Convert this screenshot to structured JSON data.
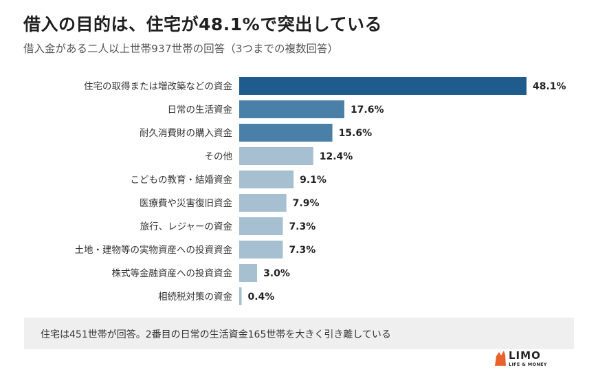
{
  "title": "借入の目的は、住宅が48.1%で突出している",
  "subtitle": "借入金がある二人以上世帯937世帯の回答（3つまでの複数回答）",
  "chart_data": {
    "type": "bar",
    "orientation": "horizontal",
    "categories": [
      "住宅の取得または増改築などの資金",
      "日常の生活資金",
      "耐久消費財の購入資金",
      "その他",
      "こどもの教育・結婚資金",
      "医療費や災害復旧資金",
      "旅行、レジャーの資金",
      "土地・建物等の実物資産への投資資金",
      "株式等金融資産への投資資金",
      "相続税対策の資金"
    ],
    "values": [
      48.1,
      17.6,
      15.6,
      12.4,
      9.1,
      7.9,
      7.3,
      7.3,
      3.0,
      0.4
    ],
    "value_labels": [
      "48.1%",
      "17.6%",
      "15.6%",
      "12.4%",
      "9.1%",
      "7.9%",
      "7.3%",
      "7.3%",
      "3.0%",
      "0.4%"
    ],
    "unit": "%",
    "colors": [
      "#1f5b8c",
      "#4a7fa8",
      "#4a7fa8",
      "#a6bfd1",
      "#a6bfd1",
      "#a6bfd1",
      "#a6bfd1",
      "#a6bfd1",
      "#a6bfd1",
      "#a6bfd1"
    ]
  },
  "note": "住宅は451世帯が回答。2番目の日常の生活資金165世帯を大きく引き離している",
  "logo": {
    "name": "LIMO",
    "tagline": "LIFE & MONEY",
    "color": "#e8632b"
  }
}
